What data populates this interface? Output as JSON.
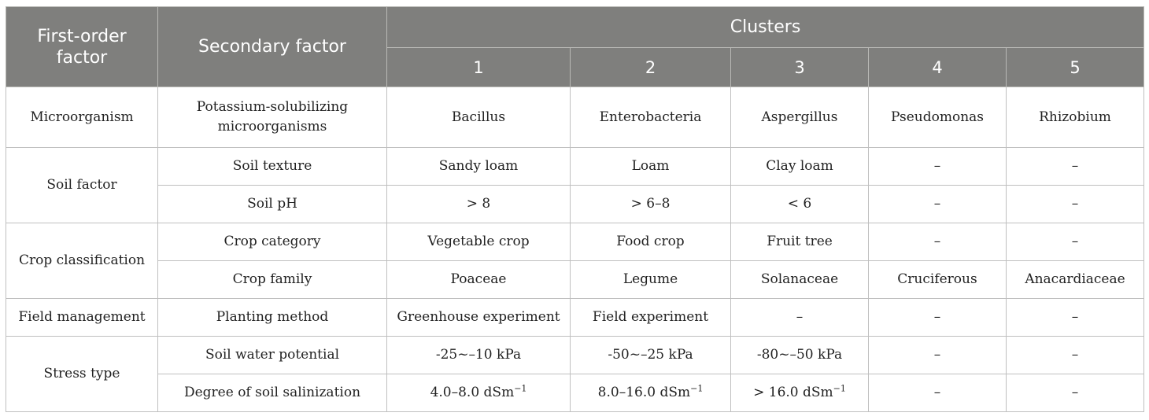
{
  "header": {
    "first_order": "First-order factor",
    "secondary": "Secondary factor",
    "clusters": "Clusters",
    "cluster_numbers": [
      "1",
      "2",
      "3",
      "4",
      "5"
    ]
  },
  "rows": [
    {
      "group": "Microorganism",
      "secondary": "Potassium-solubilizing microorganisms",
      "values": [
        "Bacillus",
        "Enterobacteria",
        "Aspergillus",
        "Pseudomonas",
        "Rhizobium"
      ]
    },
    {
      "group": "Soil factor",
      "secondary": "Soil texture",
      "values": [
        "Sandy loam",
        "Loam",
        "Clay loam",
        "–",
        "–"
      ]
    },
    {
      "group": "Soil factor",
      "secondary": "Soil pH",
      "values": [
        "> 8",
        "> 6–8",
        "< 6",
        "–",
        "–"
      ]
    },
    {
      "group": "Crop classification",
      "secondary": "Crop category",
      "values": [
        "Vegetable crop",
        "Food crop",
        "Fruit tree",
        "–",
        "–"
      ]
    },
    {
      "group": "Crop classification",
      "secondary": "Crop family",
      "values": [
        "Poaceae",
        "Legume",
        "Solanaceae",
        "Cruciferous",
        "Anacardiaceae"
      ]
    },
    {
      "group": "Field management",
      "secondary": "Planting method",
      "values": [
        "Greenhouse experiment",
        "Field experiment",
        "–",
        "–",
        "–"
      ]
    },
    {
      "group": "Stress type",
      "secondary": "Soil water potential",
      "values": [
        "-25~–10 kPa",
        "-50~–25 kPa",
        "-80~–50 kPa",
        "–",
        "–"
      ]
    },
    {
      "group": "Stress type",
      "secondary": "Degree of soil salinization",
      "values": [
        "4.0–8.0 dSm",
        "8.0–16.0 dSm",
        "> 16.0 dSm",
        "–",
        "–"
      ]
    }
  ],
  "unit_superscript": "−1"
}
